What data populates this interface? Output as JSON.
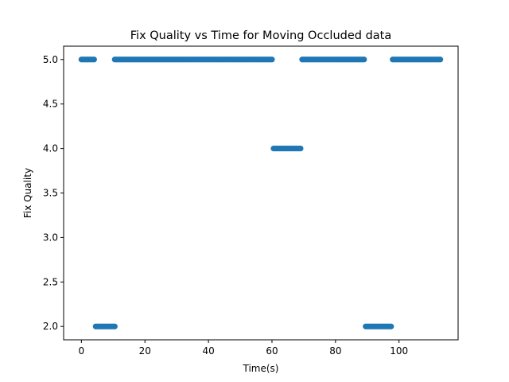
{
  "chart_data": {
    "type": "scatter",
    "title": "Fix Quality vs Time for Moving Occluded data",
    "xlabel": "Time(s)",
    "ylabel": "Fix Quality",
    "xlim": [
      -5.6,
      118.6
    ],
    "ylim": [
      1.85,
      5.15
    ],
    "xticks": [
      0,
      20,
      40,
      60,
      80,
      100
    ],
    "yticks": [
      2.0,
      2.5,
      3.0,
      3.5,
      4.0,
      4.5,
      5.0
    ],
    "color": "#1f77b4",
    "segments": [
      {
        "start": 0,
        "end": 4,
        "y": 5.0
      },
      {
        "start": 4.5,
        "end": 10.5,
        "y": 2.0
      },
      {
        "start": 10.5,
        "end": 60,
        "y": 5.0
      },
      {
        "start": 60.5,
        "end": 69,
        "y": 4.0
      },
      {
        "start": 69.5,
        "end": 89,
        "y": 5.0
      },
      {
        "start": 89.5,
        "end": 97.5,
        "y": 2.0
      },
      {
        "start": 98,
        "end": 113,
        "y": 5.0
      }
    ],
    "sample_interval_s": 0.5
  }
}
